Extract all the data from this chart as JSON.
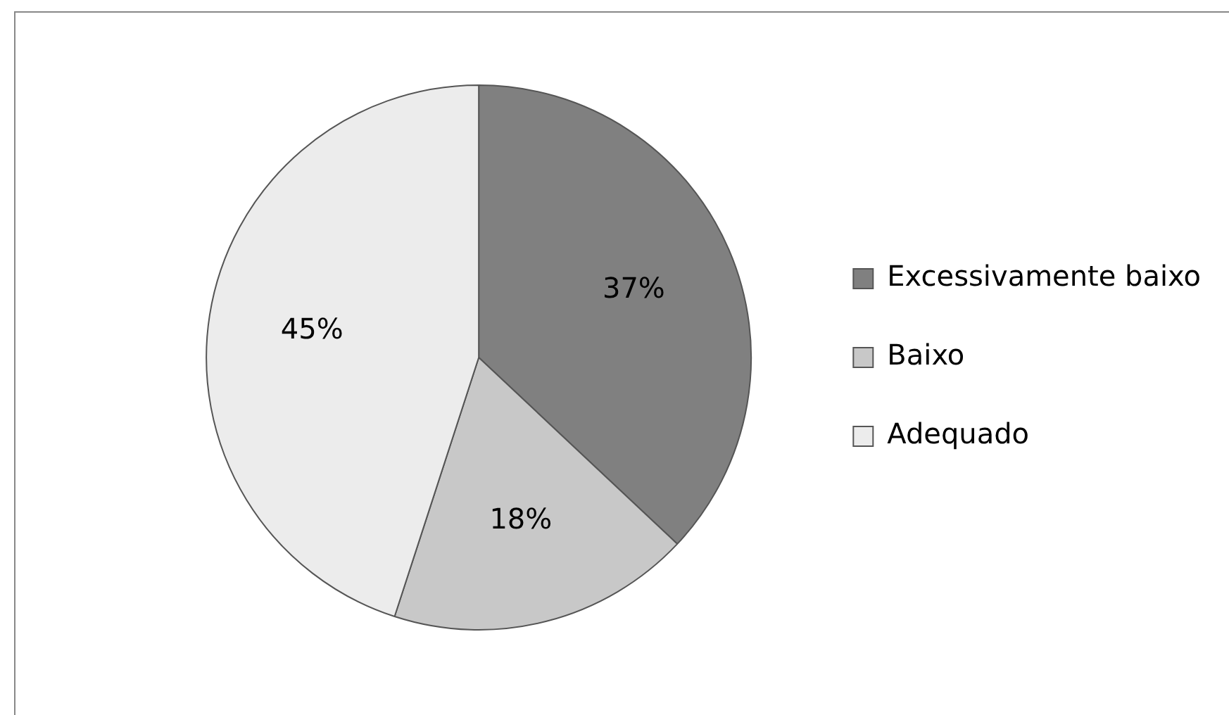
{
  "chart_data": {
    "type": "pie",
    "categories": [
      "Excessivamente baixo",
      "Baixo",
      "Adequado"
    ],
    "values": [
      37,
      18,
      45
    ],
    "colors": [
      "#808080",
      "#c8c8c8",
      "#ececec"
    ],
    "value_labels": [
      "37%",
      "18%",
      "45%"
    ],
    "legend": "right"
  }
}
